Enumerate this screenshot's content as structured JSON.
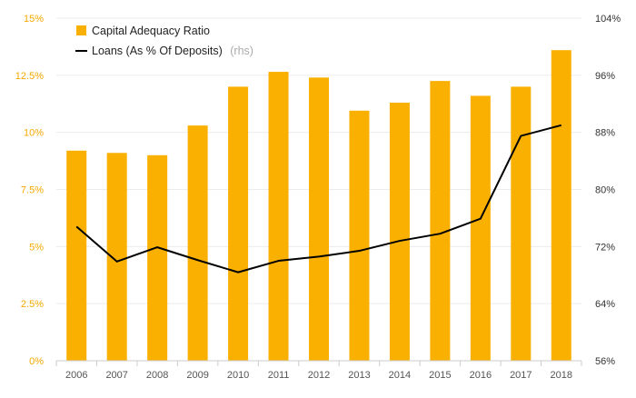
{
  "chart_data": {
    "type": "bar",
    "categories": [
      "2006",
      "2007",
      "2008",
      "2009",
      "2010",
      "2011",
      "2012",
      "2013",
      "2014",
      "2015",
      "2016",
      "2017",
      "2018"
    ],
    "series": [
      {
        "name": "Capital Adequacy Ratio",
        "type": "bar",
        "axis": "left",
        "color": "#f9b000",
        "values": [
          9.2,
          9.1,
          9.0,
          10.3,
          12.0,
          12.65,
          12.4,
          10.95,
          11.3,
          12.25,
          11.6,
          12.0,
          13.6
        ]
      },
      {
        "name": "Loans (As % Of Deposits)",
        "name_suffix": "(rhs)",
        "type": "line",
        "axis": "right",
        "color": "#000000",
        "values": [
          74.8,
          69.9,
          71.9,
          70.1,
          68.4,
          70.0,
          70.6,
          71.4,
          72.8,
          73.8,
          75.9,
          87.5,
          89.0
        ]
      }
    ],
    "y_left": {
      "min": 0,
      "max": 15,
      "ticks": [
        0,
        2.5,
        5,
        7.5,
        10,
        12.5,
        15
      ],
      "tick_labels": [
        "0%",
        "2.5%",
        "5%",
        "7.5%",
        "10%",
        "12.5%",
        "15%"
      ]
    },
    "y_right": {
      "min": 56,
      "max": 104,
      "ticks": [
        56,
        64,
        72,
        80,
        88,
        96,
        104
      ],
      "tick_labels": [
        "56%",
        "64%",
        "72%",
        "80%",
        "88%",
        "96%",
        "104%"
      ]
    },
    "grid": true,
    "legend_position": "top-left",
    "title": "",
    "xlabel": "",
    "ylabel": ""
  }
}
